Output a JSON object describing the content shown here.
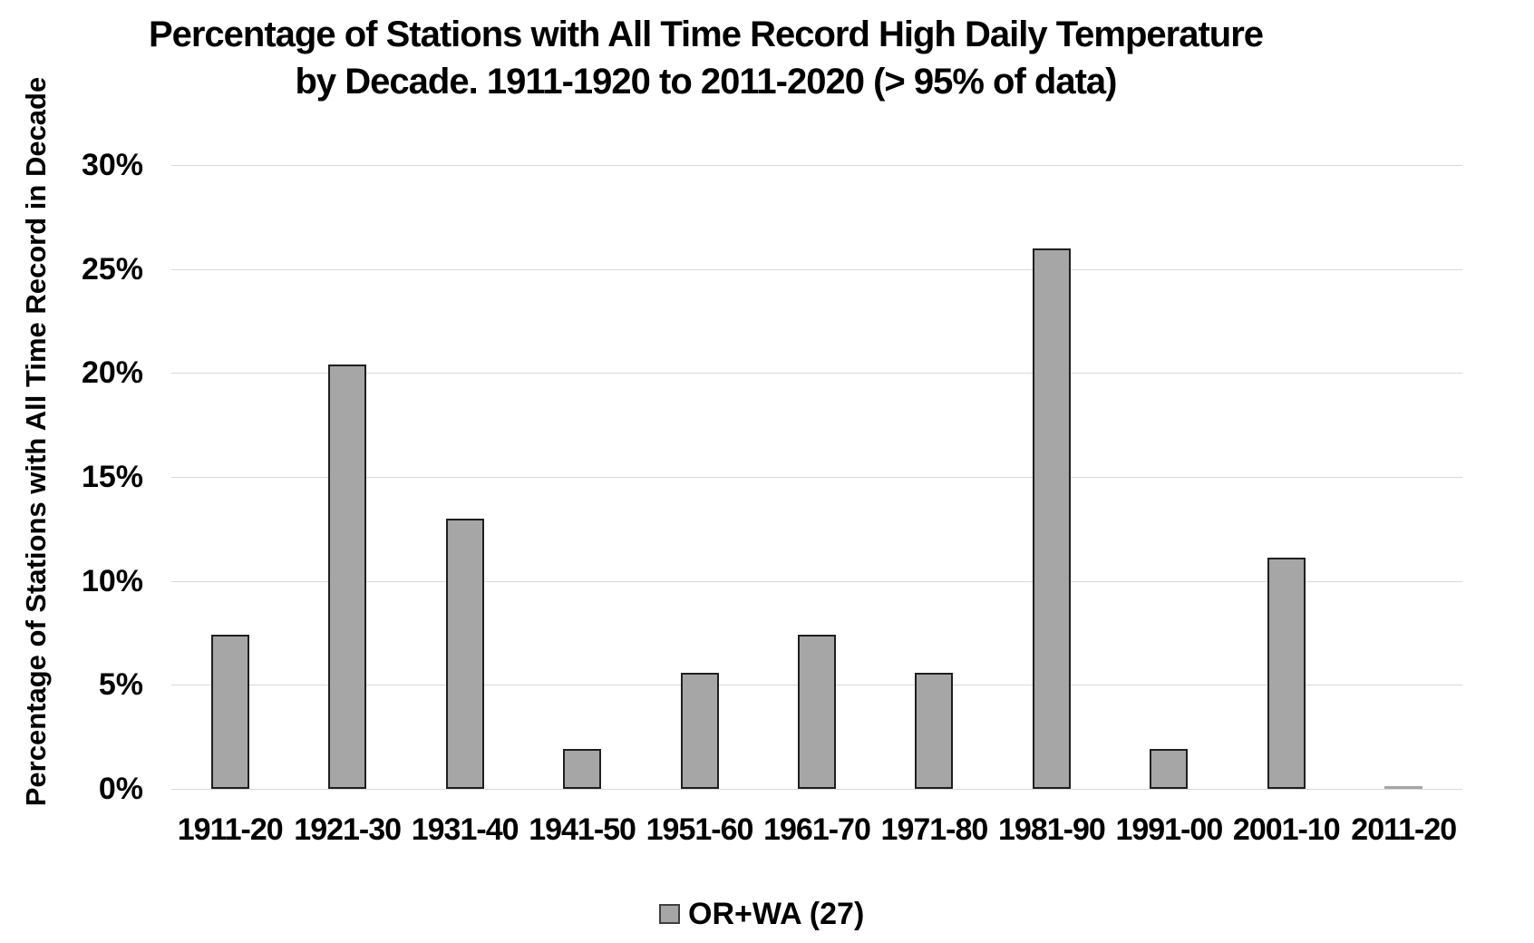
{
  "title": {
    "line1": "Percentage of Stations with All Time Record High Daily Temperature",
    "line2": "by Decade. 1911-1920 to 2011-2020 (> 95% of data)"
  },
  "y_axis": {
    "title": "Percentage of Stations with All Time Record in Decade",
    "tick_labels": [
      "0%",
      "5%",
      "10%",
      "15%",
      "20%",
      "25%",
      "30%"
    ]
  },
  "legend": {
    "label": "OR+WA (27)",
    "swatch_color": "#a6a6a6",
    "swatch_border_color": "#3f3f3f"
  },
  "colors": {
    "background": "#ffffff",
    "text": "#000000",
    "bar_fill": "#a6a6a6",
    "bar_border": "#1f1f1f",
    "gridline": "#d9d9d9"
  },
  "chart_data": {
    "type": "bar",
    "title": "Percentage of Stations with All Time Record High Daily Temperature by Decade. 1911-1920 to 2011-2020 (> 95% of data)",
    "xlabel": "",
    "ylabel": "Percentage of Stations with All Time Record in Decade",
    "categories": [
      "1911-20",
      "1921-30",
      "1931-40",
      "1941-50",
      "1951-60",
      "1961-70",
      "1971-80",
      "1981-90",
      "1991-00",
      "2001-10",
      "2011-20"
    ],
    "series": [
      {
        "name": "OR+WA (27)",
        "values": [
          7.4,
          20.4,
          13.0,
          1.9,
          5.6,
          7.4,
          5.6,
          26.0,
          1.9,
          11.1,
          0.15
        ]
      }
    ],
    "ylim": [
      0,
      30
    ],
    "yticks": [
      0,
      5,
      10,
      15,
      20,
      25,
      30
    ],
    "ytick_format": "percent",
    "grid": true,
    "legend_position": "bottom"
  }
}
